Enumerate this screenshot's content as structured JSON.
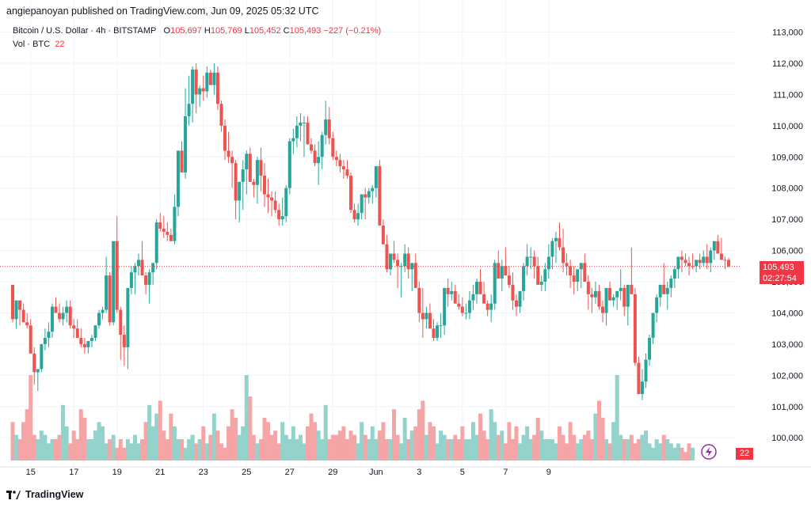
{
  "publisher_line": "angiepanoyan published on TradingView.com, Jun 09, 2025 05:32 UTC",
  "symbol": {
    "name": "Bitcoin / U.S. Dollar · 4h · BITSTAMP",
    "o_label": "O",
    "o_value": "105,697",
    "h_label": "H",
    "h_value": "105,769",
    "l_label": "L",
    "l_value": "105,452",
    "c_label": "C",
    "c_value": "105,493",
    "change": "−227 (−0.21%)"
  },
  "volume": {
    "label": "Vol · BTC",
    "value": "22"
  },
  "price_tag": {
    "price": "105,493",
    "countdown": "02:27:54"
  },
  "footer": {
    "brand": "TradingView"
  },
  "colors": {
    "up": "#26a69a",
    "down": "#ef5350",
    "up_vol": "#93d3cb",
    "down_vol": "#f5a5a5",
    "last_price": "#f23645",
    "grid": "#f0f3fa"
  },
  "chart_data": {
    "type": "candlestick",
    "timeframe": "4h",
    "y_ticks": [
      100000,
      101000,
      102000,
      103000,
      104000,
      105000,
      106000,
      107000,
      108000,
      109000,
      110000,
      111000,
      112000,
      113000
    ],
    "y_tick_labels": [
      "100,000",
      "101,000",
      "102,000",
      "103,000",
      "104,000",
      "105,000",
      "106,000",
      "107,000",
      "108,000",
      "109,000",
      "110,000",
      "111,000",
      "112,000",
      "113,000"
    ],
    "ylim": [
      99300,
      113500
    ],
    "x_tick_labels": [
      "15",
      "17",
      "19",
      "21",
      "23",
      "25",
      "27",
      "29",
      "Jun",
      "3",
      "5",
      "7",
      "9"
    ],
    "x_tick_index": [
      5,
      17,
      29,
      41,
      53,
      65,
      77,
      89,
      101,
      113,
      125,
      137,
      149
    ],
    "last_price": 105493,
    "candles": [
      [
        104900,
        104800,
        103700
      ],
      [
        103800,
        104300,
        103500
      ],
      [
        104400,
        104400,
        103600
      ],
      [
        104100,
        104300,
        103700
      ],
      [
        103700,
        104000,
        103500
      ],
      [
        103600,
        103800,
        102800
      ],
      [
        102700,
        102900,
        101700
      ],
      [
        102100,
        102200,
        101500
      ],
      [
        102200,
        103000,
        102100
      ],
      [
        103000,
        103500,
        102800
      ],
      [
        103200,
        103700,
        102900
      ],
      [
        103400,
        104300,
        103200
      ],
      [
        104200,
        104500,
        104000
      ],
      [
        104000,
        104300,
        103700
      ],
      [
        103800,
        104200,
        103600
      ],
      [
        104000,
        104400,
        103700
      ],
      [
        104200,
        104400,
        103500
      ],
      [
        103600,
        103800,
        103200
      ],
      [
        103500,
        103800,
        103300
      ],
      [
        103200,
        103500,
        102900
      ],
      [
        103000,
        103200,
        102700
      ],
      [
        102900,
        103100,
        102700
      ],
      [
        103100,
        103300,
        102900
      ],
      [
        103200,
        103500,
        103100
      ],
      [
        103600,
        104100,
        103500
      ],
      [
        104000,
        104200,
        103800
      ],
      [
        104100,
        105800,
        104000
      ],
      [
        105200,
        105300,
        103600
      ],
      [
        103700,
        106200,
        103600
      ],
      [
        106300,
        107100,
        104000
      ],
      [
        104100,
        104200,
        102500
      ],
      [
        103300,
        103600,
        102300
      ],
      [
        102900,
        104800,
        102200
      ],
      [
        104800,
        105500,
        104600
      ],
      [
        105300,
        105600,
        104600
      ],
      [
        105500,
        105900,
        105200
      ],
      [
        105700,
        106300,
        105400
      ],
      [
        105200,
        105300,
        104600
      ],
      [
        104900,
        105400,
        104300
      ],
      [
        105300,
        105500,
        104900
      ],
      [
        105600,
        107000,
        105400
      ],
      [
        106900,
        107200,
        106600
      ],
      [
        106700,
        107100,
        106400
      ],
      [
        106600,
        106900,
        106300
      ],
      [
        106500,
        106700,
        106300
      ],
      [
        106300,
        107800,
        106200
      ],
      [
        107400,
        109200,
        107100
      ],
      [
        109200,
        109500,
        108700
      ],
      [
        108500,
        111200,
        108300
      ],
      [
        110300,
        111600,
        110000
      ],
      [
        110700,
        111900,
        110100
      ],
      [
        111800,
        112000,
        110400
      ],
      [
        111000,
        111300,
        110600
      ],
      [
        111200,
        111600,
        110800
      ],
      [
        111100,
        111900,
        110900
      ],
      [
        111700,
        111800,
        111300
      ],
      [
        111300,
        112000,
        111000
      ],
      [
        111700,
        111900,
        110500
      ],
      [
        110700,
        110800,
        109800
      ],
      [
        110000,
        110200,
        108900
      ],
      [
        109200,
        109800,
        108800
      ],
      [
        109000,
        109200,
        108000
      ],
      [
        108800,
        108900,
        107000
      ],
      [
        107600,
        108000,
        106900
      ],
      [
        108200,
        108900,
        107300
      ],
      [
        108600,
        109200,
        107800
      ],
      [
        109100,
        109300,
        108200
      ],
      [
        108200,
        108300,
        107700
      ],
      [
        108100,
        109000,
        107500
      ],
      [
        108900,
        109300,
        107900
      ],
      [
        108400,
        108800,
        107400
      ],
      [
        107800,
        108300,
        107200
      ],
      [
        107700,
        107900,
        107100
      ],
      [
        107600,
        107900,
        107200
      ],
      [
        107300,
        107500,
        106800
      ],
      [
        107000,
        107700,
        106800
      ],
      [
        107100,
        108100,
        106900
      ],
      [
        108000,
        109600,
        107800
      ],
      [
        109500,
        109900,
        109100
      ],
      [
        109600,
        110300,
        109300
      ],
      [
        110000,
        110400,
        109500
      ],
      [
        110100,
        110300,
        109000
      ],
      [
        110100,
        110300,
        109700
      ],
      [
        109400,
        109600,
        109100
      ],
      [
        109200,
        109400,
        108700
      ],
      [
        108800,
        109500,
        108100
      ],
      [
        109000,
        109800,
        108600
      ],
      [
        109700,
        110800,
        109400
      ],
      [
        110200,
        110600,
        109400
      ],
      [
        109600,
        109800,
        108900
      ],
      [
        109000,
        109200,
        108700
      ],
      [
        108900,
        109100,
        108500
      ],
      [
        108700,
        108900,
        108300
      ],
      [
        108600,
        108900,
        108300
      ],
      [
        108400,
        108500,
        107200
      ],
      [
        107300,
        107500,
        106900
      ],
      [
        107000,
        107500,
        106800
      ],
      [
        107200,
        107600,
        107000
      ],
      [
        107800,
        108000,
        107000
      ],
      [
        107700,
        108000,
        107500
      ],
      [
        107900,
        108100,
        107500
      ],
      [
        108000,
        108200,
        107700
      ],
      [
        108700,
        108900,
        106900
      ],
      [
        106800,
        107000,
        106400
      ],
      [
        106200,
        106500,
        105300
      ],
      [
        105400,
        105900,
        105200
      ],
      [
        105900,
        106300,
        105600
      ],
      [
        105700,
        105900,
        104800
      ],
      [
        105500,
        105600,
        104500
      ],
      [
        105500,
        106200,
        105300
      ],
      [
        105900,
        106100,
        105100
      ],
      [
        105400,
        105600,
        104700
      ],
      [
        105600,
        105900,
        105200
      ],
      [
        104800,
        105000,
        103700
      ],
      [
        104000,
        104800,
        103200
      ],
      [
        103800,
        104200,
        103500
      ],
      [
        104000,
        104300,
        103500
      ],
      [
        103500,
        103800,
        103100
      ],
      [
        103200,
        103700,
        103100
      ],
      [
        103600,
        104000,
        103200
      ],
      [
        103600,
        104500,
        103300
      ],
      [
        104800,
        105100,
        104200
      ],
      [
        104600,
        105000,
        104400
      ],
      [
        104700,
        104900,
        104300
      ],
      [
        104300,
        104600,
        104100
      ],
      [
        104200,
        104500,
        103900
      ],
      [
        104000,
        104300,
        103800
      ],
      [
        104000,
        104700,
        103800
      ],
      [
        104400,
        104900,
        104100
      ],
      [
        104600,
        105100,
        104300
      ],
      [
        105000,
        105400,
        104800
      ],
      [
        104600,
        105000,
        104300
      ],
      [
        104300,
        104400,
        103900
      ],
      [
        104100,
        104600,
        103700
      ],
      [
        104300,
        105700,
        104100
      ],
      [
        105600,
        106000,
        105200
      ],
      [
        105100,
        105700,
        104700
      ],
      [
        105500,
        106100,
        105400
      ],
      [
        105200,
        105500,
        104800
      ],
      [
        104900,
        105300,
        104100
      ],
      [
        104400,
        104600,
        103900
      ],
      [
        104200,
        104700,
        104000
      ],
      [
        104700,
        105600,
        104400
      ],
      [
        105500,
        106200,
        105200
      ],
      [
        105800,
        106100,
        105400
      ],
      [
        105800,
        106000,
        105100
      ],
      [
        105500,
        105800,
        104900
      ],
      [
        104900,
        105200,
        104700
      ],
      [
        105000,
        105600,
        104700
      ],
      [
        105400,
        106200,
        105100
      ],
      [
        105800,
        106400,
        105400
      ],
      [
        106300,
        106600,
        105600
      ],
      [
        106400,
        106900,
        106000
      ],
      [
        106100,
        106700,
        105300
      ],
      [
        105600,
        105900,
        105200
      ],
      [
        105500,
        105700,
        104800
      ],
      [
        105200,
        105500,
        104600
      ],
      [
        105000,
        105400,
        104700
      ],
      [
        105400,
        105600,
        104800
      ],
      [
        105600,
        105900,
        105200
      ],
      [
        105000,
        105200,
        104100
      ],
      [
        104600,
        104800,
        104000
      ],
      [
        104500,
        105000,
        104300
      ],
      [
        104700,
        104900,
        104100
      ],
      [
        104200,
        104400,
        103700
      ],
      [
        104000,
        104200,
        103600
      ],
      [
        104800,
        105000,
        104500
      ],
      [
        104400,
        104600,
        104200
      ],
      [
        104500,
        104700,
        104100
      ],
      [
        104700,
        105400,
        104400
      ],
      [
        104800,
        104900,
        103900
      ],
      [
        104200,
        104500,
        103600
      ],
      [
        104900,
        106100,
        104700
      ],
      [
        104600,
        104800,
        102300
      ],
      [
        102400,
        102600,
        101400
      ],
      [
        101400,
        102200,
        101200
      ],
      [
        101800,
        102700,
        101600
      ],
      [
        102500,
        103300,
        102300
      ],
      [
        103200,
        104000,
        103000
      ],
      [
        104000,
        104600,
        103700
      ],
      [
        104500,
        104800,
        104200
      ],
      [
        104900,
        105600,
        104600
      ],
      [
        104600,
        105000,
        104100
      ],
      [
        104800,
        105200,
        104500
      ],
      [
        105100,
        105500,
        104800
      ],
      [
        105400,
        105800,
        105100
      ],
      [
        105800,
        106000,
        105300
      ],
      [
        105700,
        105900,
        105500
      ],
      [
        105600,
        105800,
        105200
      ],
      [
        105500,
        105900,
        105400
      ],
      [
        105500,
        105700,
        105300
      ],
      [
        105700,
        105900,
        105400
      ],
      [
        105600,
        106000,
        105500
      ],
      [
        105800,
        106200,
        105400
      ],
      [
        105600,
        106100,
        105300
      ],
      [
        106000,
        106300,
        105700
      ],
      [
        106300,
        106500,
        105900
      ],
      [
        105900,
        106400,
        105700
      ],
      [
        105700,
        105800,
        105400
      ],
      [
        105697,
        105769,
        105452
      ]
    ],
    "candle_close_override": [
      [
        189,
        105493
      ]
    ],
    "volumes": [
      9,
      6,
      5,
      9,
      12,
      20,
      6,
      5,
      7,
      6,
      4,
      5,
      5,
      6,
      13,
      8,
      4,
      7,
      5,
      12,
      10,
      5,
      5,
      7,
      9,
      8,
      4,
      5,
      6,
      3,
      5,
      3,
      5,
      4,
      6,
      4,
      5,
      9,
      13,
      8,
      11,
      14,
      7,
      5,
      11,
      8,
      5,
      5,
      3,
      5,
      6,
      4,
      5,
      8,
      4,
      6,
      11,
      7,
      4,
      3,
      8,
      12,
      10,
      6,
      8,
      20,
      15,
      6,
      4,
      5,
      10,
      9,
      6,
      7,
      4,
      9,
      6,
      5,
      8,
      5,
      6,
      4,
      8,
      11,
      9,
      7,
      5,
      13,
      5,
      6,
      6,
      7,
      8,
      5,
      7,
      6,
      4,
      9,
      6,
      5,
      8,
      5,
      7,
      9,
      5,
      5,
      12,
      6,
      4,
      10,
      5,
      7,
      8,
      12,
      14,
      6,
      9,
      8,
      4,
      7,
      6,
      5,
      5,
      6,
      5,
      8,
      5,
      5,
      9,
      6,
      11,
      7,
      5,
      12,
      9,
      6,
      7,
      4,
      9,
      5,
      8,
      4,
      6,
      8,
      5,
      6,
      10,
      7,
      5,
      5,
      5,
      4,
      8,
      6,
      4,
      9,
      6,
      4,
      5,
      6,
      7,
      5,
      11,
      14,
      10,
      5,
      4,
      9,
      20,
      6,
      5,
      5,
      6,
      4,
      5,
      6,
      7,
      4,
      3,
      5,
      4,
      6,
      5,
      4,
      3,
      4,
      3,
      2,
      4,
      3
    ]
  }
}
